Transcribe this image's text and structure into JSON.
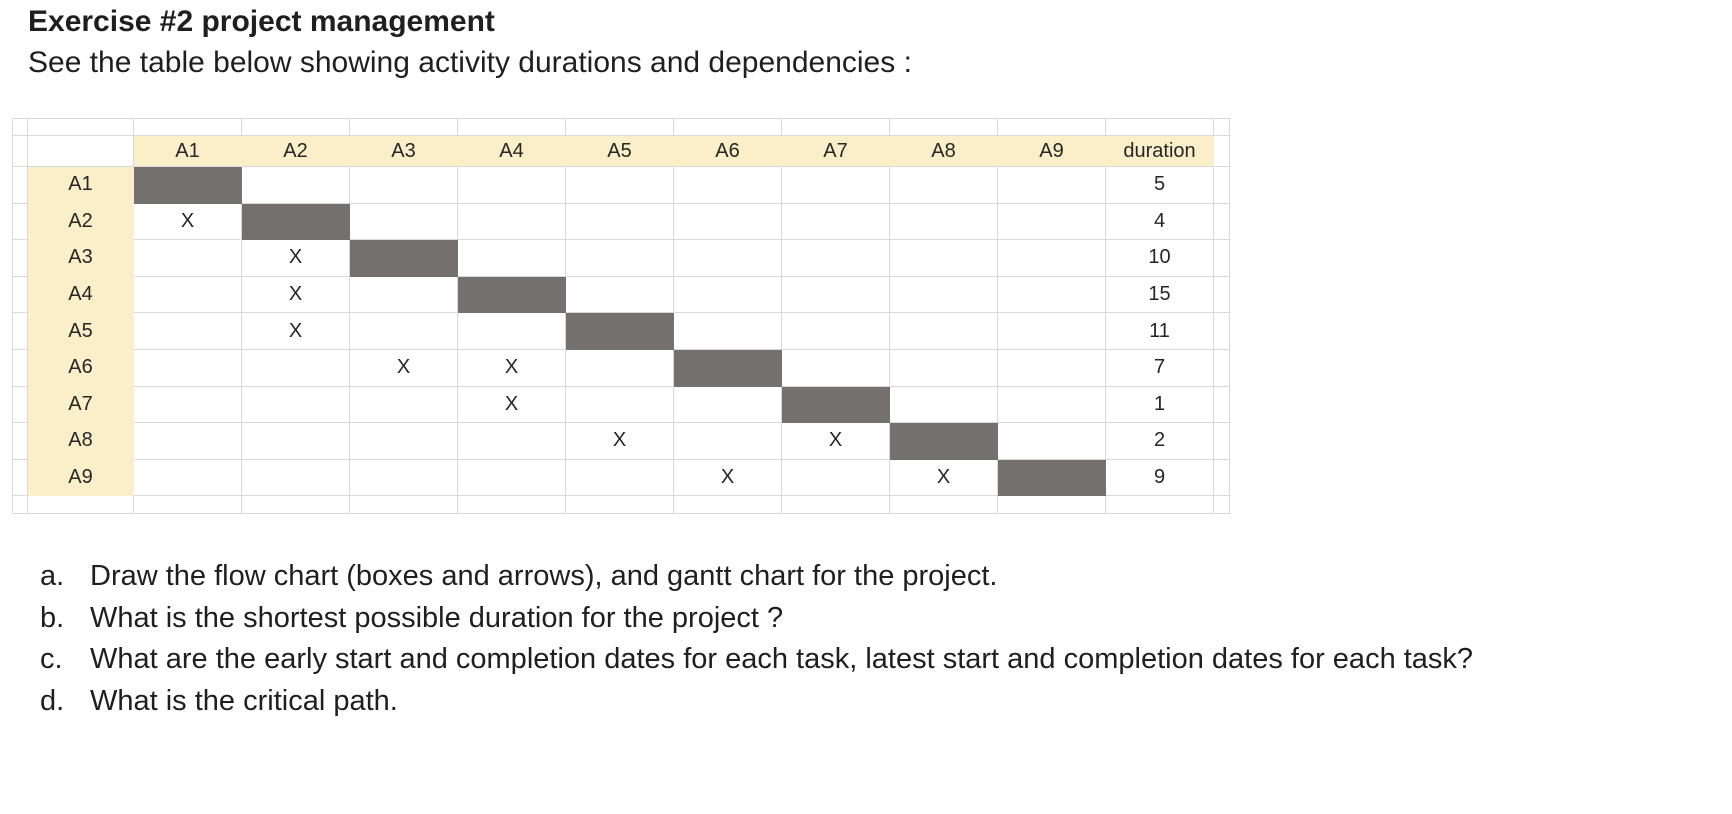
{
  "header": {
    "title": "Exercise #2 project management",
    "subtitle": "See the table below showing activity durations and dependencies :"
  },
  "matrix": {
    "column_headers": [
      "A1",
      "A2",
      "A3",
      "A4",
      "A5",
      "A6",
      "A7",
      "A8",
      "A9",
      "duration"
    ],
    "row_labels": [
      "A1",
      "A2",
      "A3",
      "A4",
      "A5",
      "A6",
      "A7",
      "A8",
      "A9"
    ],
    "dependency_mark": "X",
    "rows": [
      {
        "activity": "A1",
        "predecessors": [],
        "duration": "5"
      },
      {
        "activity": "A2",
        "predecessors": [
          "A1"
        ],
        "duration": "4"
      },
      {
        "activity": "A3",
        "predecessors": [
          "A2"
        ],
        "duration": "10"
      },
      {
        "activity": "A4",
        "predecessors": [
          "A2"
        ],
        "duration": "15"
      },
      {
        "activity": "A5",
        "predecessors": [
          "A2"
        ],
        "duration": "11"
      },
      {
        "activity": "A6",
        "predecessors": [
          "A3",
          "A4"
        ],
        "duration": "7"
      },
      {
        "activity": "A7",
        "predecessors": [
          "A4"
        ],
        "duration": "1"
      },
      {
        "activity": "A8",
        "predecessors": [
          "A5",
          "A7"
        ],
        "duration": "2"
      },
      {
        "activity": "A9",
        "predecessors": [
          "A6",
          "A8"
        ],
        "duration": "9"
      }
    ]
  },
  "questions": [
    {
      "marker": "a.",
      "text": "Draw the flow chart (boxes and arrows), and gantt chart for the project."
    },
    {
      "marker": "b.",
      "text": "What is the shortest possible duration for the project ?"
    },
    {
      "marker": "c.",
      "text": "What are the early start and completion dates for each task, latest start and completion dates for each task?"
    },
    {
      "marker": "d.",
      "text": "What is the critical path."
    }
  ],
  "colors": {
    "header_fill": "#faefc9",
    "diagonal_fill": "#757070",
    "gridline": "#d9d9d9",
    "text": "#1f1f1f"
  }
}
